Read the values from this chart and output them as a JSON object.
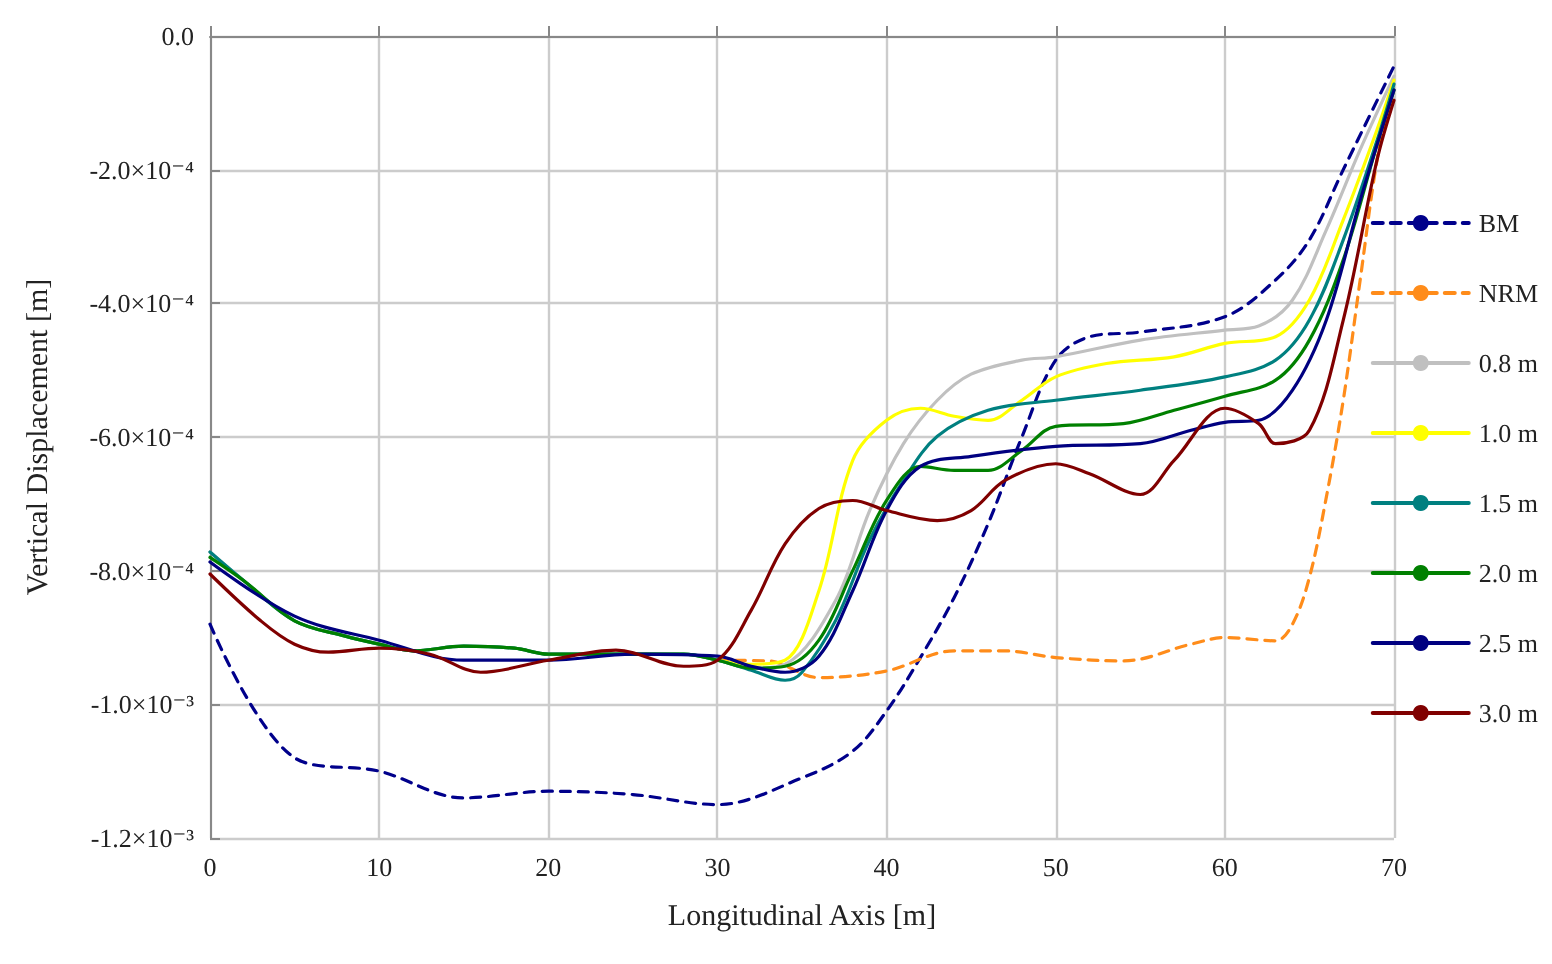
{
  "chart_data": {
    "type": "line",
    "xlabel": "Longitudinal Axis [m]",
    "ylabel": "Vertical Displacement [m]",
    "xlim": [
      0,
      70
    ],
    "xticks": [
      0,
      10,
      20,
      30,
      40,
      50,
      60,
      70
    ],
    "ylim": [
      -0.0012,
      0
    ],
    "yticks": [
      {
        "value": 0,
        "label": "0.0"
      },
      {
        "value": -0.0002,
        "label": "-2.0×10⁻⁴"
      },
      {
        "value": -0.0004,
        "label": "-4.0×10⁻⁴"
      },
      {
        "value": -0.0006,
        "label": "-6.0×10⁻⁴"
      },
      {
        "value": -0.0008,
        "label": "-8.0×10⁻⁴"
      },
      {
        "value": -0.001,
        "label": "-1.0×10⁻³"
      },
      {
        "value": -0.0012,
        "label": "-1.2×10⁻³"
      }
    ],
    "grid": true,
    "legend": "right",
    "marker": "none",
    "series": [
      {
        "name": "BM",
        "color": "#00008b",
        "line_style": "dashed",
        "x": [
          0,
          5,
          10,
          15,
          20,
          25,
          30,
          35,
          38,
          40,
          42,
          44,
          46,
          48,
          50,
          52,
          55,
          60,
          63,
          65,
          67,
          70
        ],
        "values": [
          -0.00088,
          -0.00108,
          -0.0011,
          -0.00114,
          -0.00113,
          -0.001135,
          -0.00115,
          -0.00111,
          -0.00107,
          -0.00101,
          -0.00093,
          -0.00084,
          -0.00073,
          -0.0006,
          -0.000485,
          -0.00045,
          -0.000443,
          -0.00042,
          -0.000365,
          -0.000305,
          -0.0002,
          -4.5e-05
        ]
      },
      {
        "name": "NRM",
        "color": "#ff8c1a",
        "line_style": "dashed",
        "x": [
          30,
          33,
          36,
          40,
          44,
          47,
          50,
          54,
          58,
          60,
          63,
          64,
          65,
          66,
          67,
          68,
          69,
          70
        ],
        "values": [
          -0.000934,
          -0.000935,
          -0.00096,
          -0.00095,
          -0.00092,
          -0.00092,
          -0.00093,
          -0.000935,
          -0.00091,
          -0.0009,
          -0.000905,
          -0.00088,
          -0.00081,
          -0.00069,
          -0.000545,
          -0.000365,
          -0.000185,
          -6.5e-05
        ]
      },
      {
        "name": "0.8 m",
        "color": "#c0c0c0",
        "line_style": "solid",
        "x": [
          0,
          2,
          5,
          8,
          10,
          12,
          15,
          18,
          20,
          25,
          28,
          30,
          32,
          34,
          37,
          39,
          41,
          43,
          45,
          48,
          50,
          55,
          60,
          62,
          64,
          66,
          68,
          70
        ],
        "values": [
          -0.000772,
          -0.000815,
          -0.000875,
          -0.000898,
          -0.00091,
          -0.00092,
          -0.000913,
          -0.000916,
          -0.000925,
          -0.000925,
          -0.000925,
          -0.000934,
          -0.000946,
          -0.00094,
          -0.000844,
          -0.00071,
          -0.00061,
          -0.000545,
          -0.000506,
          -0.000485,
          -0.00048,
          -0.000455,
          -0.00044,
          -0.000434,
          -0.000395,
          -0.00029,
          -0.00017,
          -6e-05
        ]
      },
      {
        "name": "1.0 m",
        "color": "#ffff00",
        "line_style": "solid",
        "x": [
          30,
          32,
          34,
          36,
          38,
          40,
          42,
          44,
          46,
          48,
          50,
          53,
          57,
          60,
          63,
          65,
          67,
          69,
          70
        ],
        "values": [
          -0.000934,
          -0.00094,
          -0.000934,
          -0.00083,
          -0.000635,
          -0.000575,
          -0.000557,
          -0.000569,
          -0.000575,
          -0.000545,
          -0.00051,
          -0.00049,
          -0.00048,
          -0.00046,
          -0.00045,
          -0.000395,
          -0.000275,
          -0.00014,
          -6.6e-05
        ]
      },
      {
        "name": "1.5 m",
        "color": "#008080",
        "line_style": "solid",
        "x": [
          0,
          2,
          5,
          8,
          10,
          12,
          15,
          18,
          20,
          25,
          28,
          30,
          32,
          34,
          35,
          37,
          39,
          41,
          43,
          46,
          50,
          55,
          60,
          63,
          65,
          67,
          69,
          70
        ],
        "values": [
          -0.000772,
          -0.000815,
          -0.000875,
          -0.000898,
          -0.00091,
          -0.00092,
          -0.000913,
          -0.000916,
          -0.000925,
          -0.000925,
          -0.000925,
          -0.000934,
          -0.000949,
          -0.000964,
          -0.000952,
          -0.000874,
          -0.000754,
          -0.000665,
          -0.000599,
          -0.00056,
          -0.000545,
          -0.00053,
          -0.00051,
          -0.000485,
          -0.000425,
          -0.000305,
          -0.000156,
          -7.2e-05
        ]
      },
      {
        "name": "2.0 m",
        "color": "#008000",
        "line_style": "solid",
        "x": [
          0,
          2,
          5,
          8,
          10,
          12,
          15,
          18,
          20,
          25,
          28,
          30,
          32,
          34,
          36,
          38,
          40,
          42,
          44,
          46,
          48,
          50,
          54,
          57,
          60,
          63,
          65,
          67,
          69,
          70
        ],
        "values": [
          -0.00078,
          -0.000815,
          -0.000875,
          -0.000898,
          -0.00091,
          -0.00092,
          -0.000913,
          -0.000916,
          -0.000925,
          -0.000925,
          -0.000925,
          -0.000934,
          -0.000946,
          -0.000943,
          -0.000904,
          -0.0008,
          -0.000695,
          -0.000644,
          -0.00065,
          -0.00065,
          -0.00062,
          -0.000584,
          -0.00058,
          -0.00056,
          -0.000539,
          -0.000515,
          -0.000455,
          -0.000335,
          -0.000162,
          -8.1e-05
        ]
      },
      {
        "name": "2.5 m",
        "color": "#000080",
        "line_style": "solid",
        "x": [
          0,
          5,
          10,
          15,
          20,
          25,
          30,
          32,
          34,
          36,
          38,
          40,
          42,
          45,
          50,
          55,
          58,
          60,
          62,
          64,
          66,
          68,
          70
        ],
        "values": [
          -0.000787,
          -0.000868,
          -0.000904,
          -0.000934,
          -0.000934,
          -0.000925,
          -0.000928,
          -0.000943,
          -0.000952,
          -0.000928,
          -0.00083,
          -0.00071,
          -0.000644,
          -0.000629,
          -0.000614,
          -0.00061,
          -0.00059,
          -0.000578,
          -0.000575,
          -0.00053,
          -0.000425,
          -0.000246,
          -8.1e-05
        ]
      },
      {
        "name": "3.0 m",
        "color": "#800000",
        "line_style": "solid",
        "x": [
          0,
          3,
          5,
          7,
          10,
          13,
          16,
          20,
          24,
          28,
          30,
          32,
          34,
          36,
          38,
          40,
          43,
          45,
          47,
          50,
          52,
          55,
          57,
          60,
          62,
          63,
          65,
          67,
          69,
          70
        ],
        "values": [
          -0.000805,
          -0.000875,
          -0.00091,
          -0.000922,
          -0.000916,
          -0.000925,
          -0.000952,
          -0.000934,
          -0.000919,
          -0.000943,
          -0.000934,
          -0.000859,
          -0.00076,
          -0.000707,
          -0.000695,
          -0.00071,
          -0.000725,
          -0.00071,
          -0.000665,
          -0.00064,
          -0.000655,
          -0.000686,
          -0.000635,
          -0.000557,
          -0.00058,
          -0.00061,
          -0.00059,
          -0.000425,
          -0.000185,
          -9.6e-05
        ]
      }
    ]
  }
}
